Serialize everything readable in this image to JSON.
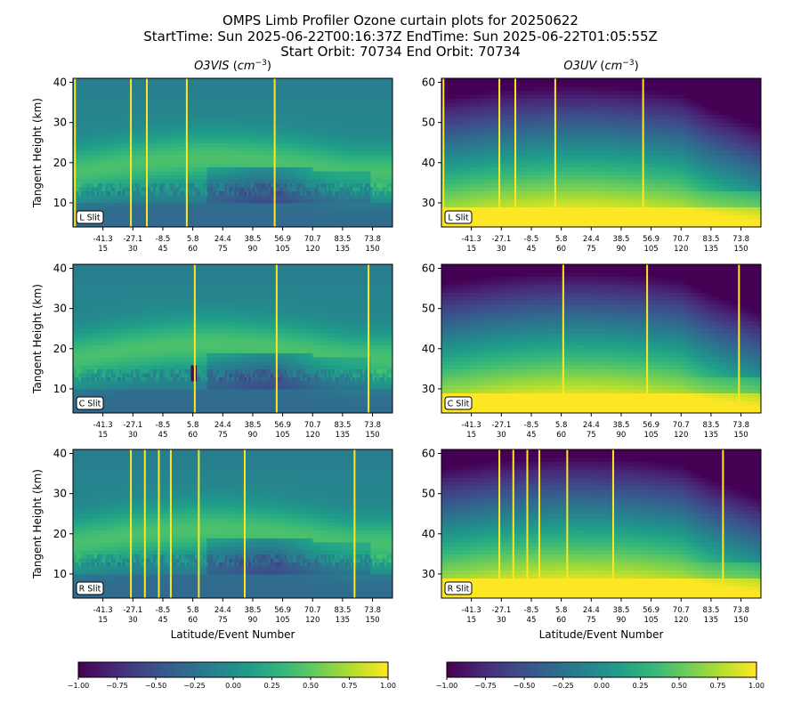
{
  "figure": {
    "title_lines": [
      "OMPS Limb Profiler Ozone curtain plots for 20250622",
      "StartTime: Sun 2025-06-22T00:16:37Z  EndTime: Sun 2025-06-22T01:05:55Z",
      "Start Orbit: 70734 End Orbit: 70734"
    ]
  },
  "chart_data": {
    "type": "heatmap",
    "colormap": "viridis",
    "columns": [
      {
        "name": "O3VIS",
        "title": "O3VIS ($cm^{-3}$)",
        "ylim": [
          4,
          41
        ],
        "yticks": [
          10,
          20,
          30,
          40
        ]
      },
      {
        "name": "O3UV",
        "title": "O3UV ($cm^{-3}$)",
        "ylim": [
          24,
          61
        ],
        "yticks": [
          30,
          40,
          50,
          60
        ]
      }
    ],
    "rows": [
      "L Slit",
      "C Slit",
      "R Slit"
    ],
    "ylabel": "Tangent Height (km)",
    "xlabel": "Latitude/Event Number",
    "xlim": [
      0,
      160
    ],
    "xticks": {
      "event_numbers": [
        15,
        30,
        45,
        60,
        75,
        90,
        105,
        120,
        135,
        150
      ],
      "latitudes": [
        "-41.3",
        "-27.1",
        "-8.5",
        "5.8",
        "24.4",
        "38.5",
        "56.9",
        "70.7",
        "83.5",
        "73.8"
      ]
    },
    "missing_event_lines": {
      "O3VIS": {
        "L Slit": [
          1,
          29,
          37,
          57,
          101
        ],
        "C Slit": [
          61,
          102,
          148
        ],
        "R Slit": [
          29,
          36,
          43,
          49,
          63,
          86,
          141
        ]
      },
      "O3UV": {
        "L Slit": [
          1,
          29,
          37,
          57,
          101
        ],
        "C Slit": [
          61,
          103,
          149
        ],
        "R Slit": [
          29,
          36,
          43,
          49,
          63,
          86,
          141
        ]
      }
    },
    "colorbar": {
      "ticks": [
        -1.0,
        -0.75,
        -0.5,
        -0.25,
        0.0,
        0.25,
        0.5,
        0.75,
        1.0
      ],
      "tick_labels": [
        "−1.00",
        "−0.75",
        "−0.50",
        "−0.25",
        "0.00",
        "0.25",
        "0.50",
        "0.75",
        "1.00"
      ],
      "range": [
        -1,
        1
      ]
    },
    "grid": false,
    "missing_line_color": "#fde725"
  }
}
